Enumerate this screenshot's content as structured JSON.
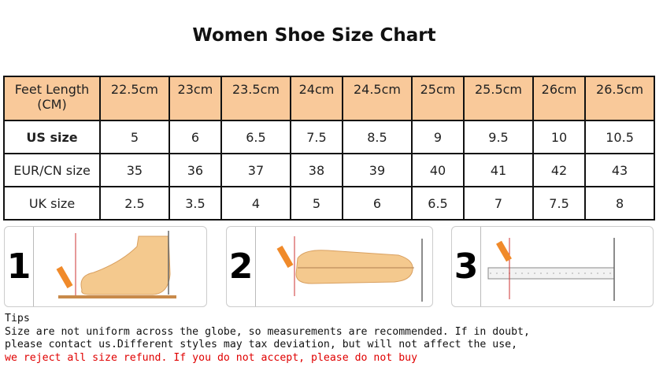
{
  "title": "Women Shoe Size Chart",
  "table": {
    "header": {
      "label": "Feet Length (CM)",
      "values": [
        "22.5cm",
        "23cm",
        "23.5cm",
        "24cm",
        "24.5cm",
        "25cm",
        "25.5cm",
        "26cm",
        "26.5cm"
      ]
    },
    "rows": [
      {
        "label": "US size",
        "values": [
          "5",
          "6",
          "6.5",
          "7.5",
          "8.5",
          "9",
          "9.5",
          "10",
          "10.5"
        ]
      },
      {
        "label": "EUR/CN size",
        "values": [
          "35",
          "36",
          "37",
          "38",
          "39",
          "40",
          "41",
          "42",
          "43"
        ]
      },
      {
        "label": "UK size",
        "values": [
          "2.5",
          "3.5",
          "4",
          "5",
          "6",
          "6.5",
          "7",
          "7.5",
          "8"
        ]
      }
    ],
    "header_color": "#f9c99a"
  },
  "steps": [
    "1",
    "2",
    "3"
  ],
  "tips": {
    "heading": "Tips",
    "line1": "Size are not uniform across the globe, so measurements are recommended. If in doubt,",
    "line2": "please contact us.Different styles may tax deviation, but will not affect the use,",
    "line3": "we reject all size refund. If you do not accept, please do not buy",
    "warning_color": "#e00000"
  }
}
